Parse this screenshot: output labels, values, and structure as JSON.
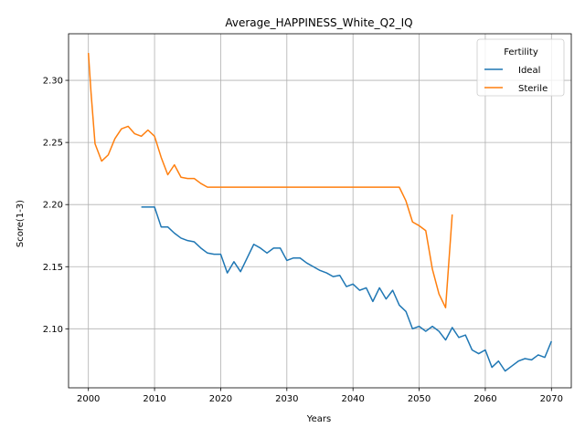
{
  "chart_data": {
    "type": "line",
    "title": "Average_HAPPINESS_White_Q2_IQ",
    "xlabel": "Years",
    "ylabel": "Score(1-3)",
    "xlim": [
      1997,
      2073
    ],
    "ylim": [
      2.0525,
      2.3375
    ],
    "x_ticks": [
      2000,
      2010,
      2020,
      2030,
      2040,
      2050,
      2060,
      2070
    ],
    "y_ticks": [
      2.1,
      2.15,
      2.2,
      2.25,
      2.3
    ],
    "x_tick_labels": [
      "2000",
      "2010",
      "2020",
      "2030",
      "2040",
      "2050",
      "2060",
      "2070"
    ],
    "y_tick_labels": [
      "2.10",
      "2.15",
      "2.20",
      "2.25",
      "2.30"
    ],
    "grid": true,
    "legend": {
      "title": "Fertility",
      "placement": "top-right"
    },
    "series": [
      {
        "name": "Ideal",
        "color": "#1f77b4",
        "x": [
          2008,
          2009,
          2010,
          2011,
          2012,
          2013,
          2014,
          2015,
          2016,
          2017,
          2018,
          2019,
          2020,
          2021,
          2022,
          2023,
          2024,
          2025,
          2026,
          2027,
          2028,
          2029,
          2030,
          2031,
          2032,
          2033,
          2034,
          2035,
          2036,
          2037,
          2038,
          2039,
          2040,
          2041,
          2042,
          2043,
          2044,
          2045,
          2046,
          2047,
          2048,
          2049,
          2050,
          2051,
          2052,
          2053,
          2054,
          2055,
          2056,
          2057,
          2058,
          2059,
          2060,
          2061,
          2062,
          2063,
          2064,
          2065,
          2066,
          2067,
          2068,
          2069,
          2070
        ],
        "y": [
          2.198,
          2.198,
          2.198,
          2.182,
          2.182,
          2.177,
          2.173,
          2.171,
          2.17,
          2.165,
          2.161,
          2.16,
          2.16,
          2.145,
          2.154,
          2.146,
          2.157,
          2.168,
          2.165,
          2.161,
          2.165,
          2.165,
          2.155,
          2.157,
          2.157,
          2.153,
          2.15,
          2.147,
          2.145,
          2.142,
          2.143,
          2.134,
          2.136,
          2.131,
          2.133,
          2.122,
          2.133,
          2.124,
          2.131,
          2.119,
          2.114,
          2.1,
          2.102,
          2.098,
          2.102,
          2.098,
          2.091,
          2.101,
          2.093,
          2.095,
          2.083,
          2.08,
          2.083,
          2.069,
          2.074,
          2.066,
          2.07,
          2.074,
          2.076,
          2.075,
          2.079,
          2.077,
          2.09
        ]
      },
      {
        "name": "Sterile",
        "color": "#ff7f0e",
        "x": [
          2000,
          2000.4,
          2001,
          2002,
          2003,
          2004,
          2005,
          2006,
          2007,
          2008,
          2009,
          2010,
          2011,
          2012,
          2013,
          2014,
          2015,
          2016,
          2017,
          2018,
          2019,
          2020,
          2021,
          2022,
          2023,
          2024,
          2025,
          2026,
          2027,
          2028,
          2029,
          2030,
          2031,
          2032,
          2033,
          2034,
          2035,
          2036,
          2037,
          2038,
          2039,
          2040,
          2041,
          2042,
          2043,
          2044,
          2045,
          2046,
          2047,
          2048,
          2049,
          2050,
          2051,
          2052,
          2053,
          2054,
          2055
        ],
        "y": [
          2.322,
          2.29,
          2.249,
          2.235,
          2.24,
          2.253,
          2.261,
          2.263,
          2.257,
          2.255,
          2.26,
          2.255,
          2.238,
          2.224,
          2.232,
          2.222,
          2.221,
          2.221,
          2.217,
          2.214,
          2.214,
          2.214,
          2.214,
          2.214,
          2.214,
          2.214,
          2.214,
          2.214,
          2.214,
          2.214,
          2.214,
          2.214,
          2.214,
          2.214,
          2.214,
          2.214,
          2.214,
          2.214,
          2.214,
          2.214,
          2.214,
          2.214,
          2.214,
          2.214,
          2.214,
          2.214,
          2.214,
          2.214,
          2.214,
          2.203,
          2.186,
          2.183,
          2.179,
          2.148,
          2.128,
          2.117,
          2.192
        ]
      }
    ]
  }
}
